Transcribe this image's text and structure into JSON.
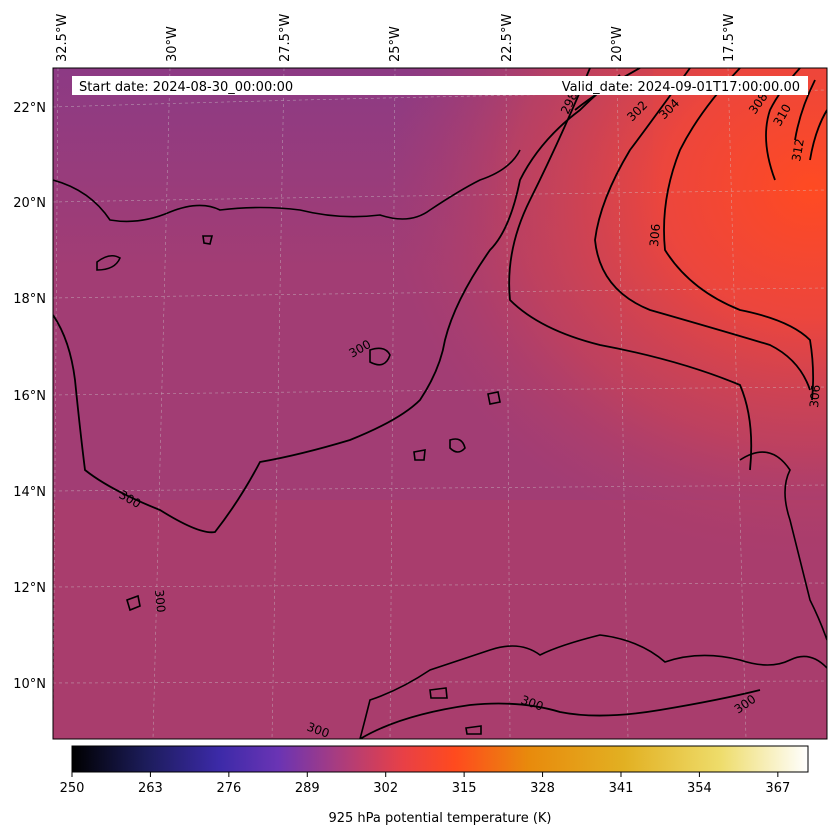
{
  "info": {
    "start_date": "Start date: 2024-08-30_00:00:00",
    "valid_date": "Valid_date: 2024-09-01T17:00:00.00"
  },
  "longitude_labels": [
    "32.5°W",
    "30°W",
    "27.5°W",
    "25°W",
    "22.5°W",
    "20°W",
    "17.5°W"
  ],
  "latitude_labels": [
    "22°N",
    "20°N",
    "18°N",
    "16°N",
    "14°N",
    "12°N",
    "10°N"
  ],
  "contour_labels": [
    "298",
    "302",
    "304",
    "308",
    "310",
    "312",
    "306",
    "306",
    "300",
    "300",
    "300",
    "300",
    "300",
    "300"
  ],
  "colorbar": {
    "title": "925 hPa potential temperature (K)",
    "ticks": [
      "250",
      "263",
      "276",
      "289",
      "302",
      "315",
      "328",
      "341",
      "354",
      "367"
    ],
    "colormap": "CMRmap",
    "range": [
      250,
      372
    ]
  },
  "colors": {
    "field_low": "#9a3c78",
    "field_mid": "#c63f5c",
    "field_high": "#ff4526",
    "contour": "#000000",
    "coast": "#000000"
  }
}
